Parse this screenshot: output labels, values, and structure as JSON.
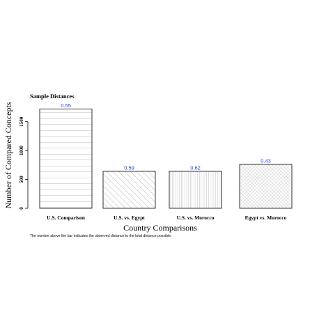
{
  "chart_data": {
    "type": "bar",
    "title": "Sample Distances",
    "xlabel": "Country Comparisons",
    "ylabel": "Number of Compared Concepts",
    "caption": "The number above the bar indicates the observed distance to the total distance possible.",
    "categories": [
      "U.S. Comparison",
      "U.S. vs. Egypt",
      "U.S. vs. Morocco",
      "Egypt vs. Morocco"
    ],
    "values": [
      1720,
      640,
      640,
      760
    ],
    "bar_labels": [
      "0.55",
      "0.59",
      "0.62",
      "0.43"
    ],
    "fill_patterns": [
      "horizontal-lines",
      "diagonal-lines",
      "vertical-lines",
      "crosshatch"
    ],
    "ylim": [
      0,
      1750
    ],
    "yticks": [
      "0",
      "500",
      "1000",
      "1500"
    ],
    "label_color": "#1f3fd6",
    "grid": false,
    "legend": "none"
  }
}
